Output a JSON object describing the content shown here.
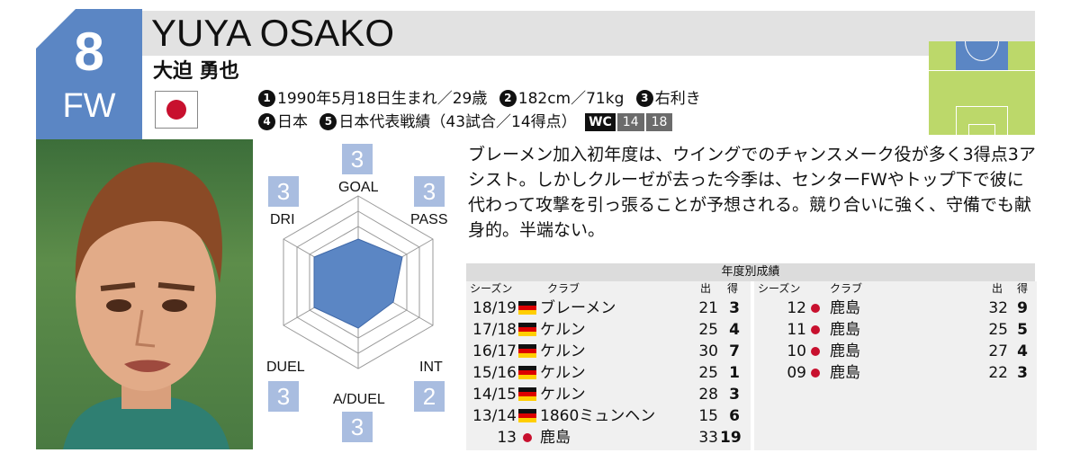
{
  "player": {
    "number": "8",
    "position": "FW",
    "name_en": "YUYA OSAKO",
    "name_jp": "大迫 勇也",
    "nationality_flag": "japan-flag",
    "info_line_1": [
      {
        "num": "1",
        "text": "1990年5月18日生まれ／29歳"
      },
      {
        "num": "2",
        "text": "182cm／71kg"
      },
      {
        "num": "3",
        "text": "右利き"
      }
    ],
    "info_line_2": [
      {
        "num": "4",
        "text": "日本"
      },
      {
        "num": "5",
        "text": "日本代表戦績（43試合／14得点）"
      }
    ],
    "wc": {
      "label": "WC",
      "years": [
        "14",
        "18"
      ]
    }
  },
  "radar": {
    "goal": {
      "label": "GOAL",
      "value": "3"
    },
    "pass": {
      "label": "PASS",
      "value": "3"
    },
    "int": {
      "label": "INT",
      "value": "2"
    },
    "aduel": {
      "label": "A/DUEL",
      "value": "3"
    },
    "duel": {
      "label": "DUEL",
      "value": "3"
    },
    "dri": {
      "label": "DRI",
      "value": "3"
    }
  },
  "description": "ブレーメン加入初年度は、ウイングでのチャンスメーク役が多く3得点3アシスト。しかしクルーゼが去った今季は、センターFWやトップ下で彼に代わって攻撃を引っ張ることが予想される。競り合いに強く、守備でも献身的。半端ない。",
  "stats": {
    "title": "年度別成績",
    "headers": {
      "season": "シーズン",
      "club": "クラブ",
      "apps": "出",
      "goals": "得"
    },
    "left": [
      {
        "season": "18/19",
        "flag": "germany",
        "club": "ブレーメン",
        "apps": "21",
        "goals": "3"
      },
      {
        "season": "17/18",
        "flag": "germany",
        "club": "ケルン",
        "apps": "25",
        "goals": "4"
      },
      {
        "season": "16/17",
        "flag": "germany",
        "club": "ケルン",
        "apps": "30",
        "goals": "7"
      },
      {
        "season": "15/16",
        "flag": "germany",
        "club": "ケルン",
        "apps": "25",
        "goals": "1"
      },
      {
        "season": "14/15",
        "flag": "germany",
        "club": "ケルン",
        "apps": "28",
        "goals": "3"
      },
      {
        "season": "13/14",
        "flag": "germany",
        "club": "1860ミュンヘン",
        "apps": "15",
        "goals": "6"
      },
      {
        "season": "13",
        "flag": "japan",
        "club": "鹿島",
        "apps": "33",
        "goals": "19"
      }
    ],
    "right": [
      {
        "season": "12",
        "flag": "japan",
        "club": "鹿島",
        "apps": "32",
        "goals": "9"
      },
      {
        "season": "11",
        "flag": "japan",
        "club": "鹿島",
        "apps": "25",
        "goals": "5"
      },
      {
        "season": "10",
        "flag": "japan",
        "club": "鹿島",
        "apps": "27",
        "goals": "4"
      },
      {
        "season": "09",
        "flag": "japan",
        "club": "鹿島",
        "apps": "22",
        "goals": "3"
      }
    ]
  },
  "colors": {
    "accent_blue": "#5b86c4",
    "radar_fill": "#5b86c4",
    "stat_box": "#a9bde0",
    "pitch_green": "#bcd86a"
  }
}
